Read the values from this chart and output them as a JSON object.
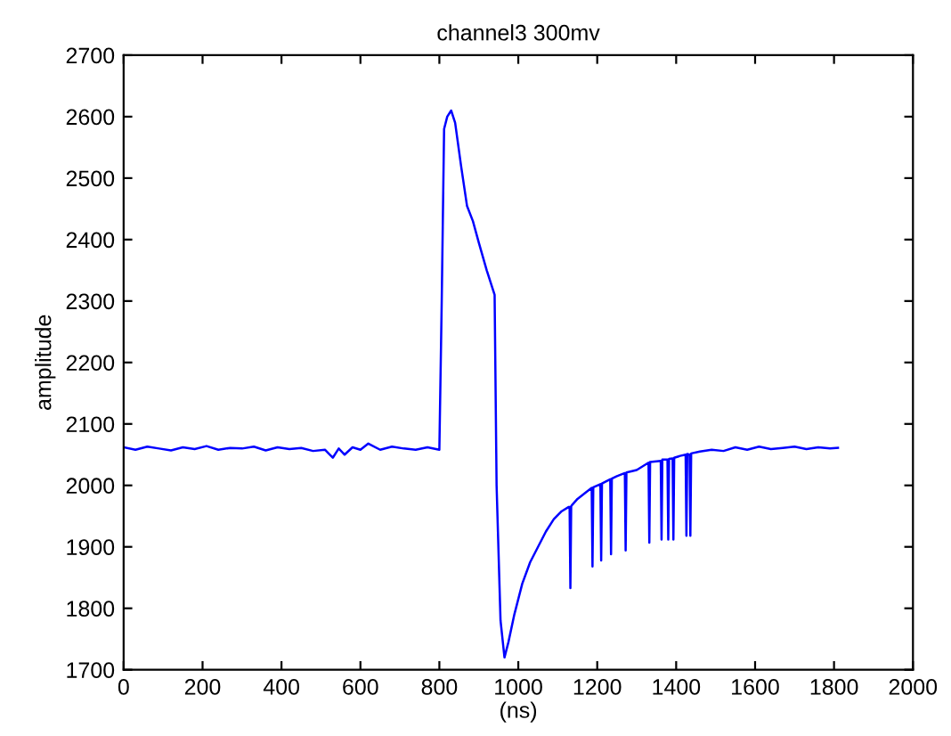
{
  "chart_data": {
    "type": "line",
    "title": "channel3 300mv",
    "xlabel": "(ns)",
    "ylabel": "amplitude",
    "xlim": [
      0,
      2000
    ],
    "ylim": [
      1700,
      2700
    ],
    "xticks": [
      0,
      200,
      400,
      600,
      800,
      1000,
      1200,
      1400,
      1600,
      1800,
      2000
    ],
    "yticks": [
      1700,
      1800,
      1900,
      2000,
      2100,
      2200,
      2300,
      2400,
      2500,
      2600,
      2700
    ],
    "grid": false,
    "marker": "none",
    "line_style": "solid",
    "series": [
      {
        "color": "#0000ff",
        "x": [
          0,
          30,
          60,
          90,
          120,
          150,
          180,
          210,
          240,
          270,
          300,
          330,
          360,
          390,
          420,
          450,
          480,
          510,
          530,
          545,
          560,
          580,
          600,
          620,
          650,
          680,
          710,
          740,
          770,
          800,
          806,
          812,
          820,
          830,
          840,
          855,
          870,
          885,
          900,
          920,
          940,
          945,
          955,
          965,
          975,
          990,
          1010,
          1030,
          1050,
          1070,
          1090,
          1110,
          1128,
          1130,
          1132,
          1134,
          1136,
          1150,
          1170,
          1186,
          1188,
          1190,
          1208,
          1210,
          1212,
          1233,
          1235,
          1237,
          1250,
          1270,
          1272,
          1274,
          1300,
          1330,
          1332,
          1334,
          1361,
          1363,
          1365,
          1378,
          1380,
          1382,
          1391,
          1393,
          1395,
          1410,
          1424,
          1426,
          1428,
          1434,
          1436,
          1438,
          1460,
          1490,
          1520,
          1550,
          1580,
          1610,
          1640,
          1670,
          1700,
          1730,
          1760,
          1790,
          1810
        ],
        "values": [
          2062,
          2058,
          2063,
          2060,
          2057,
          2062,
          2059,
          2064,
          2058,
          2061,
          2060,
          2063,
          2057,
          2062,
          2059,
          2061,
          2056,
          2058,
          2045,
          2060,
          2050,
          2062,
          2058,
          2068,
          2058,
          2063,
          2060,
          2058,
          2062,
          2058,
          2300,
          2580,
          2600,
          2610,
          2590,
          2520,
          2455,
          2430,
          2395,
          2350,
          2310,
          2000,
          1780,
          1720,
          1745,
          1790,
          1840,
          1875,
          1900,
          1925,
          1945,
          1958,
          1965,
          1965,
          1833,
          1966,
          1968,
          1978,
          1988,
          1996,
          1868,
          1997,
          2002,
          1878,
          2003,
          2010,
          1888,
          2011,
          2015,
          2020,
          1894,
          2021,
          2025,
          2037,
          1907,
          2038,
          2040,
          1912,
          2042,
          2042,
          1912,
          2043,
          2044,
          1912,
          2045,
          2048,
          2050,
          1918,
          2051,
          2050,
          1918,
          2052,
          2055,
          2058,
          2056,
          2062,
          2058,
          2063,
          2059,
          2061,
          2063,
          2059,
          2062,
          2060,
          2061
        ]
      }
    ]
  }
}
